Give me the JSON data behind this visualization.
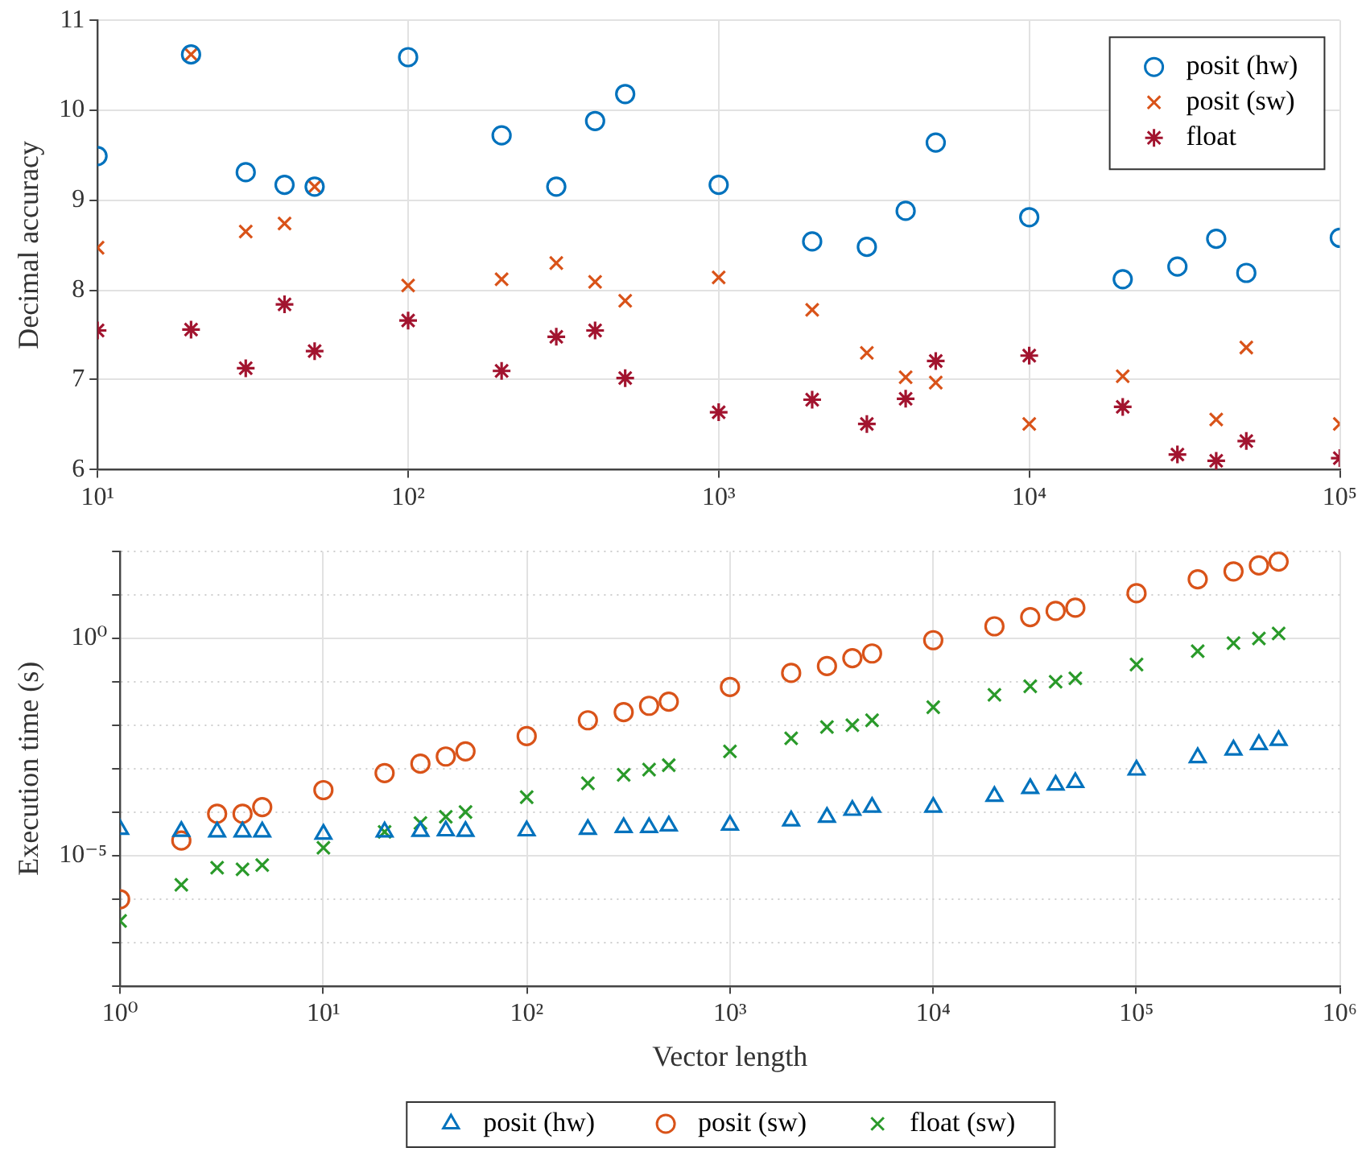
{
  "chart_data": [
    {
      "type": "scatter",
      "ylabel": "Decimal accuracy",
      "log": "x",
      "grid": true,
      "legend": "top right",
      "x": [
        10,
        20,
        30,
        40,
        50,
        100,
        200,
        300,
        400,
        500,
        1000,
        2000,
        3000,
        4000,
        5000,
        10000,
        20000,
        30000,
        40000,
        50000,
        100000
      ],
      "xlim": [
        10,
        100000
      ],
      "xticks": [
        {
          "value": 10,
          "label": "10¹"
        },
        {
          "value": 100,
          "label": "10²"
        },
        {
          "value": 1000,
          "label": "10³"
        },
        {
          "value": 10000,
          "label": "10⁴"
        },
        {
          "value": 100000,
          "label": "10⁵"
        }
      ],
      "ylim": [
        6,
        11
      ],
      "yticks": [
        6,
        7,
        8,
        9,
        10,
        11
      ],
      "series": [
        {
          "name": "posit (hw)",
          "color": "#0072bd",
          "marker": "circle",
          "values": [
            9.49,
            10.62,
            9.31,
            9.17,
            9.15,
            10.59,
            9.72,
            9.15,
            9.88,
            10.18,
            9.17,
            8.54,
            8.48,
            8.88,
            9.64,
            8.81,
            8.12,
            8.26,
            8.57,
            8.19,
            8.58
          ]
        },
        {
          "name": "posit (sw)",
          "color": "#d95319",
          "marker": "cross",
          "values": [
            8.47,
            10.62,
            8.65,
            8.74,
            9.15,
            8.05,
            8.12,
            8.3,
            8.09,
            7.88,
            8.14,
            7.78,
            7.3,
            7.03,
            6.97,
            6.51,
            7.04,
            null,
            6.56,
            7.36,
            6.51
          ]
        },
        {
          "name": "float",
          "color": "#a2142f",
          "values": [
            7.55,
            7.56,
            7.13,
            7.84,
            7.32,
            7.66,
            7.1,
            7.48,
            7.55,
            7.02,
            6.64,
            6.78,
            6.51,
            6.79,
            7.21,
            7.27,
            6.7,
            6.17,
            6.1,
            6.32,
            6.13
          ]
        }
      ]
    },
    {
      "type": "scatter",
      "xlabel": "Vector length",
      "ylabel": "Execution time (s)",
      "log": "xy",
      "grid": true,
      "legend": "bottom",
      "x": [
        1,
        2,
        3,
        4,
        5,
        10,
        20,
        30,
        40,
        50,
        100,
        200,
        300,
        400,
        500,
        1000,
        2000,
        3000,
        4000,
        5000,
        10000,
        20000,
        30000,
        40000,
        50000,
        100000,
        200000,
        300000,
        400000,
        500000
      ],
      "xlim": [
        1,
        1000000
      ],
      "xticks": [
        {
          "value": 1,
          "label": "10⁰"
        },
        {
          "value": 10,
          "label": "10¹"
        },
        {
          "value": 100,
          "label": "10²"
        },
        {
          "value": 1000,
          "label": "10³"
        },
        {
          "value": 10000,
          "label": "10⁴"
        },
        {
          "value": 100000,
          "label": "10⁵"
        },
        {
          "value": 1000000,
          "label": "10⁶"
        }
      ],
      "ylim": [
        1e-08,
        100
      ],
      "yticks": [
        {
          "value": 1e-08,
          "label": null
        },
        {
          "value": 1e-07,
          "label": null
        },
        {
          "value": 1e-06,
          "label": null
        },
        {
          "value": 1e-05,
          "label": "10⁻⁵"
        },
        {
          "value": 0.0001,
          "label": null
        },
        {
          "value": 0.001,
          "label": null
        },
        {
          "value": 0.01,
          "label": null
        },
        {
          "value": 0.1,
          "label": null
        },
        {
          "value": 1,
          "label": "10⁰"
        },
        {
          "value": 10,
          "label": null
        },
        {
          "value": 100,
          "label": null
        }
      ],
      "series": [
        {
          "name": "posit (hw)",
          "color": "#0072bd",
          "marker": "triangle",
          "values": [
            4e-05,
            3.6e-05,
            3.5e-05,
            3.5e-05,
            3.5e-05,
            3.1e-05,
            3.5e-05,
            3.6e-05,
            3.7e-05,
            3.6e-05,
            3.7e-05,
            4e-05,
            4.4e-05,
            4.4e-05,
            4.8e-05,
            5e-05,
            6.3e-05,
            7.6e-05,
            0.00011,
            0.00013,
            0.00013,
            0.00023,
            0.00035,
            0.00042,
            0.00048,
            0.00093,
            0.0018,
            0.0027,
            0.0036,
            0.0045
          ]
        },
        {
          "name": "posit (sw)",
          "color": "#d95319",
          "marker": "circle",
          "values": [
            9.8e-07,
            2.2e-05,
            9.1e-05,
            9.1e-05,
            0.00013,
            0.00032,
            0.00079,
            0.0013,
            0.0019,
            0.0025,
            0.0056,
            0.013,
            0.02,
            0.028,
            0.035,
            0.076,
            0.16,
            0.23,
            0.35,
            0.45,
            0.91,
            1.9,
            3.1,
            4.3,
            5.1,
            11,
            23,
            35,
            48,
            59
          ]
        },
        {
          "name": "float (sw)",
          "color": "#2a9a2a",
          "marker": "cross",
          "values": [
            3.1e-07,
            2.1e-06,
            5.2e-06,
            4.8e-06,
            6e-06,
            1.5e-05,
            3.5e-05,
            5.6e-05,
            7.8e-05,
            0.0001,
            0.00022,
            0.00046,
            0.00072,
            0.00095,
            0.0012,
            0.0025,
            0.005,
            0.0091,
            0.01,
            0.013,
            0.026,
            0.05,
            0.079,
            0.1,
            0.12,
            0.25,
            0.51,
            0.78,
            1.0,
            1.3
          ]
        }
      ]
    }
  ]
}
